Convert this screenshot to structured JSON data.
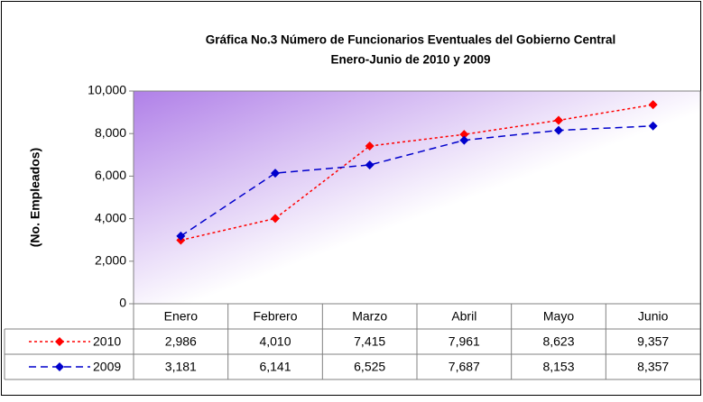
{
  "chart_data": {
    "type": "line",
    "title": "Gráfica No.3 Número de Funcionarios Eventuales del Gobierno Central",
    "subtitle": "Enero-Junio de 2010 y 2009",
    "y_label": "(No. Empleados)",
    "categories": [
      "Enero",
      "Febrero",
      "Marzo",
      "Abril",
      "Mayo",
      "Junio"
    ],
    "series": [
      {
        "name": "2010",
        "color": "#ff0000",
        "dashed": "dotted",
        "values": [
          2986,
          4010,
          7415,
          7961,
          8623,
          9357
        ],
        "value_labels": [
          "2,986",
          "4,010",
          "7,415",
          "7,961",
          "8,623",
          "9,357"
        ]
      },
      {
        "name": "2009",
        "color": "#0000cc",
        "dashed": "dashed",
        "values": [
          3181,
          6141,
          6525,
          7687,
          8153,
          8357
        ],
        "value_labels": [
          "3,181",
          "6,141",
          "6,525",
          "7,687",
          "8,153",
          "8,357"
        ]
      }
    ],
    "ylim": [
      0,
      10000
    ],
    "yticks": [
      0,
      {
        "value": 2000,
        "label": "2,000"
      },
      {
        "value": 4000,
        "label": "4,000"
      },
      {
        "value": 6000,
        "label": "6,000"
      },
      {
        "value": 8000,
        "label": "8,000"
      },
      {
        "value": 10000,
        "label": "10,000"
      }
    ]
  }
}
